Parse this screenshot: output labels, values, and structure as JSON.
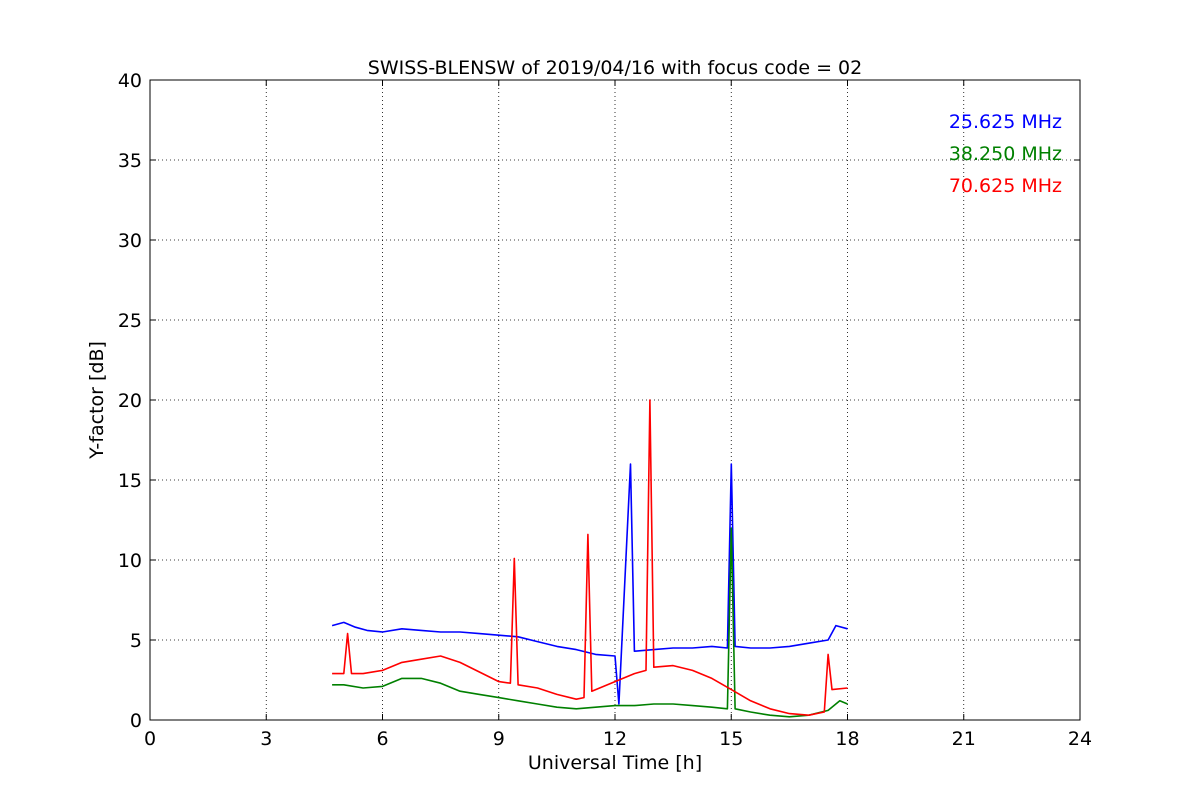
{
  "chart_data": {
    "type": "line",
    "title": "SWISS-BLENSW of 2019/04/16 with focus code = 02",
    "xlabel": "Universal Time [h]",
    "ylabel": "Y-factor [dB]",
    "xlim": [
      0,
      24
    ],
    "ylim": [
      0,
      40
    ],
    "xticks": [
      0,
      3,
      6,
      9,
      12,
      15,
      18,
      21,
      24
    ],
    "yticks": [
      0,
      5,
      10,
      15,
      20,
      25,
      30,
      35,
      40
    ],
    "grid": true,
    "legend_position": "top-right",
    "series": [
      {
        "name": "25.625 MHz",
        "color": "#0000ff",
        "x": [
          4.7,
          5.0,
          5.3,
          5.6,
          6.0,
          6.5,
          7.0,
          7.5,
          8.0,
          8.5,
          9.0,
          9.5,
          10.0,
          10.5,
          11.0,
          11.5,
          12.0,
          12.1,
          12.4,
          12.5,
          13.0,
          13.5,
          14.0,
          14.5,
          14.9,
          15.0,
          15.1,
          15.5,
          16.0,
          16.5,
          17.0,
          17.5,
          17.7,
          18.0
        ],
        "values": [
          5.9,
          6.1,
          5.8,
          5.6,
          5.5,
          5.7,
          5.6,
          5.5,
          5.5,
          5.4,
          5.3,
          5.2,
          4.9,
          4.6,
          4.4,
          4.1,
          4.0,
          1.0,
          16.0,
          4.3,
          4.4,
          4.5,
          4.5,
          4.6,
          4.5,
          16.0,
          4.6,
          4.5,
          4.5,
          4.6,
          4.8,
          5.0,
          5.9,
          5.7
        ]
      },
      {
        "name": "38.250 MHz",
        "color": "#008000",
        "x": [
          4.7,
          5.0,
          5.5,
          6.0,
          6.5,
          7.0,
          7.5,
          8.0,
          8.5,
          9.0,
          9.5,
          10.0,
          10.5,
          11.0,
          11.5,
          12.0,
          12.5,
          13.0,
          13.5,
          14.0,
          14.5,
          14.9,
          15.0,
          15.1,
          15.5,
          16.0,
          16.5,
          17.0,
          17.5,
          17.8,
          18.0
        ],
        "values": [
          2.2,
          2.2,
          2.0,
          2.1,
          2.6,
          2.6,
          2.3,
          1.8,
          1.6,
          1.4,
          1.2,
          1.0,
          0.8,
          0.7,
          0.8,
          0.9,
          0.9,
          1.0,
          1.0,
          0.9,
          0.8,
          0.7,
          12.0,
          0.7,
          0.5,
          0.3,
          0.2,
          0.3,
          0.6,
          1.2,
          1.0
        ]
      },
      {
        "name": "70.625 MHz",
        "color": "#ff0000",
        "x": [
          4.7,
          5.0,
          5.1,
          5.2,
          5.5,
          6.0,
          6.5,
          7.0,
          7.5,
          8.0,
          8.5,
          9.0,
          9.3,
          9.4,
          9.5,
          10.0,
          10.5,
          11.0,
          11.2,
          11.3,
          11.4,
          12.0,
          12.5,
          12.8,
          12.9,
          13.0,
          13.5,
          14.0,
          14.5,
          15.0,
          15.5,
          16.0,
          16.5,
          17.0,
          17.4,
          17.5,
          17.6,
          18.0
        ],
        "values": [
          2.9,
          2.9,
          5.4,
          2.9,
          2.9,
          3.1,
          3.6,
          3.8,
          4.0,
          3.6,
          3.0,
          2.4,
          2.3,
          10.1,
          2.2,
          2.0,
          1.6,
          1.3,
          1.4,
          11.6,
          1.8,
          2.4,
          2.9,
          3.1,
          20.0,
          3.3,
          3.4,
          3.1,
          2.6,
          1.9,
          1.2,
          0.7,
          0.4,
          0.3,
          0.5,
          4.1,
          1.9,
          2.0
        ]
      }
    ]
  }
}
